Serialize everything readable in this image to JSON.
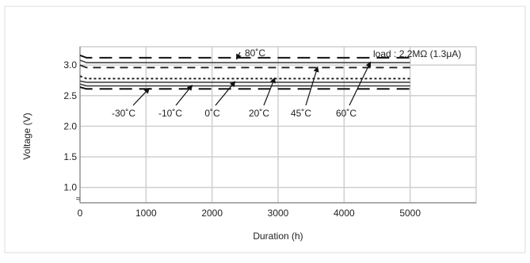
{
  "chart_data": {
    "type": "line",
    "xlabel": "Duration (h)",
    "ylabel": "Voltage (V)",
    "xlim": [
      0,
      6000
    ],
    "ylim": [
      0.75,
      3.3
    ],
    "x_ticks": [
      0,
      1000,
      2000,
      3000,
      4000,
      5000
    ],
    "y_ticks": [
      1.0,
      1.5,
      2.0,
      2.5,
      3.0
    ],
    "axis_break_symbol": "≈",
    "grid": true,
    "legend": "none",
    "load_annotation": "load : 2.2MΩ (1.3μA)",
    "series": [
      {
        "name": "80˚C",
        "style": "longdash",
        "x": [
          0,
          100,
          5000
        ],
        "y": [
          3.16,
          3.12,
          3.12
        ]
      },
      {
        "name": "60˚C",
        "style": "solid",
        "x": [
          0,
          100,
          5000
        ],
        "y": [
          3.08,
          3.04,
          3.04
        ]
      },
      {
        "name": "45˚C",
        "style": "dash",
        "x": [
          0,
          100,
          5000
        ],
        "y": [
          3.0,
          2.96,
          2.96
        ]
      },
      {
        "name": "20˚C",
        "style": "dot",
        "x": [
          0,
          100,
          5000
        ],
        "y": [
          2.82,
          2.78,
          2.78
        ]
      },
      {
        "name": "0˚C",
        "style": "solid",
        "x": [
          0,
          100,
          5000
        ],
        "y": [
          2.74,
          2.72,
          2.72
        ]
      },
      {
        "name": "-10˚C",
        "style": "solid",
        "x": [
          0,
          100,
          5000
        ],
        "y": [
          2.69,
          2.66,
          2.66
        ]
      },
      {
        "name": "-30˚C",
        "style": "longdash",
        "x": [
          0,
          100,
          5000
        ],
        "y": [
          2.64,
          2.61,
          2.61
        ]
      }
    ],
    "annotations": [
      {
        "text": "80˚C",
        "series": "80˚C"
      },
      {
        "text": "-30˚C",
        "series": "-30˚C"
      },
      {
        "text": "-10˚C",
        "series": "-10˚C"
      },
      {
        "text": "0˚C",
        "series": "0˚C"
      },
      {
        "text": "20˚C",
        "series": "20˚C"
      },
      {
        "text": "45˚C",
        "series": "45˚C"
      },
      {
        "text": "60˚C",
        "series": "60˚C"
      }
    ]
  }
}
